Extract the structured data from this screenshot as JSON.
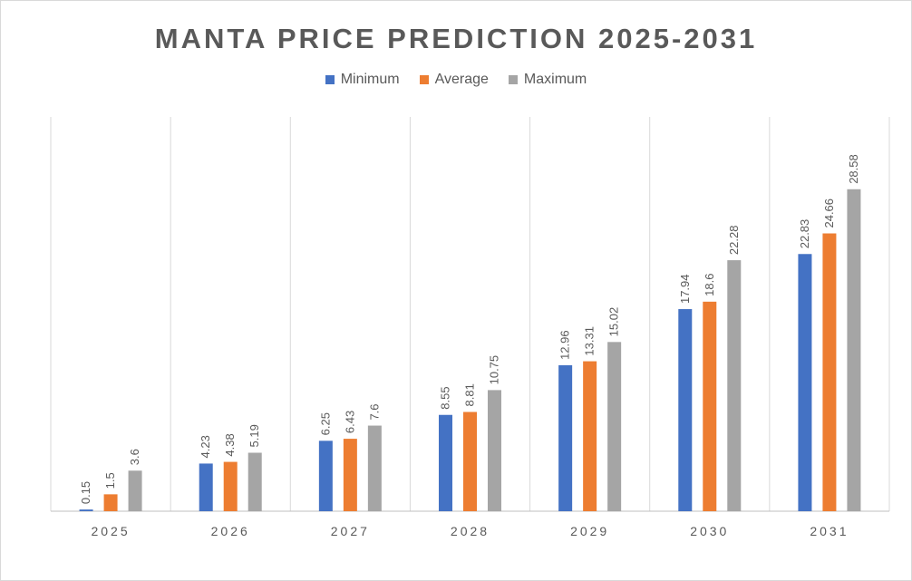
{
  "chart_data": {
    "type": "bar",
    "title": "MANTA PRICE PREDICTION 2025-2031",
    "xlabel": "",
    "ylabel": "",
    "categories": [
      "2025",
      "2026",
      "2027",
      "2028",
      "2029",
      "2030",
      "2031"
    ],
    "series": [
      {
        "name": "Minimum",
        "color": "#4472c4",
        "values": [
          0.15,
          4.23,
          6.25,
          8.55,
          12.96,
          17.94,
          22.83
        ]
      },
      {
        "name": "Average",
        "color": "#ed7d31",
        "values": [
          1.5,
          4.38,
          6.43,
          8.81,
          13.31,
          18.6,
          24.66
        ]
      },
      {
        "name": "Maximum",
        "color": "#a5a5a5",
        "values": [
          3.6,
          5.19,
          7.6,
          10.75,
          15.02,
          22.28,
          28.58
        ]
      }
    ],
    "ylim": [
      0,
      35
    ],
    "legend": "top",
    "grid": "vertical category separators"
  }
}
